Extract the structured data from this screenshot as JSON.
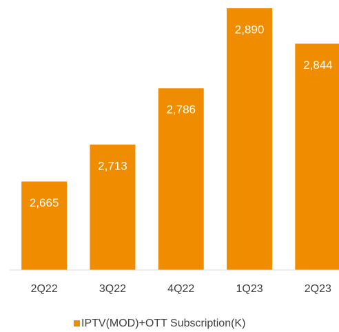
{
  "chart_data": {
    "type": "bar",
    "categories": [
      "2Q22",
      "3Q22",
      "4Q22",
      "1Q23",
      "2Q23"
    ],
    "series": [
      {
        "name": "IPTV(MOD)+OTT Subscription(K)",
        "color": "#f08c00",
        "values": [
          2665,
          2713,
          2786,
          2890,
          2844
        ],
        "value_labels": [
          "2,665",
          "2,713",
          "2,786",
          "2,890",
          "2,844"
        ]
      }
    ],
    "ylim": [
      2550,
      2890
    ],
    "legend": "bottom"
  }
}
